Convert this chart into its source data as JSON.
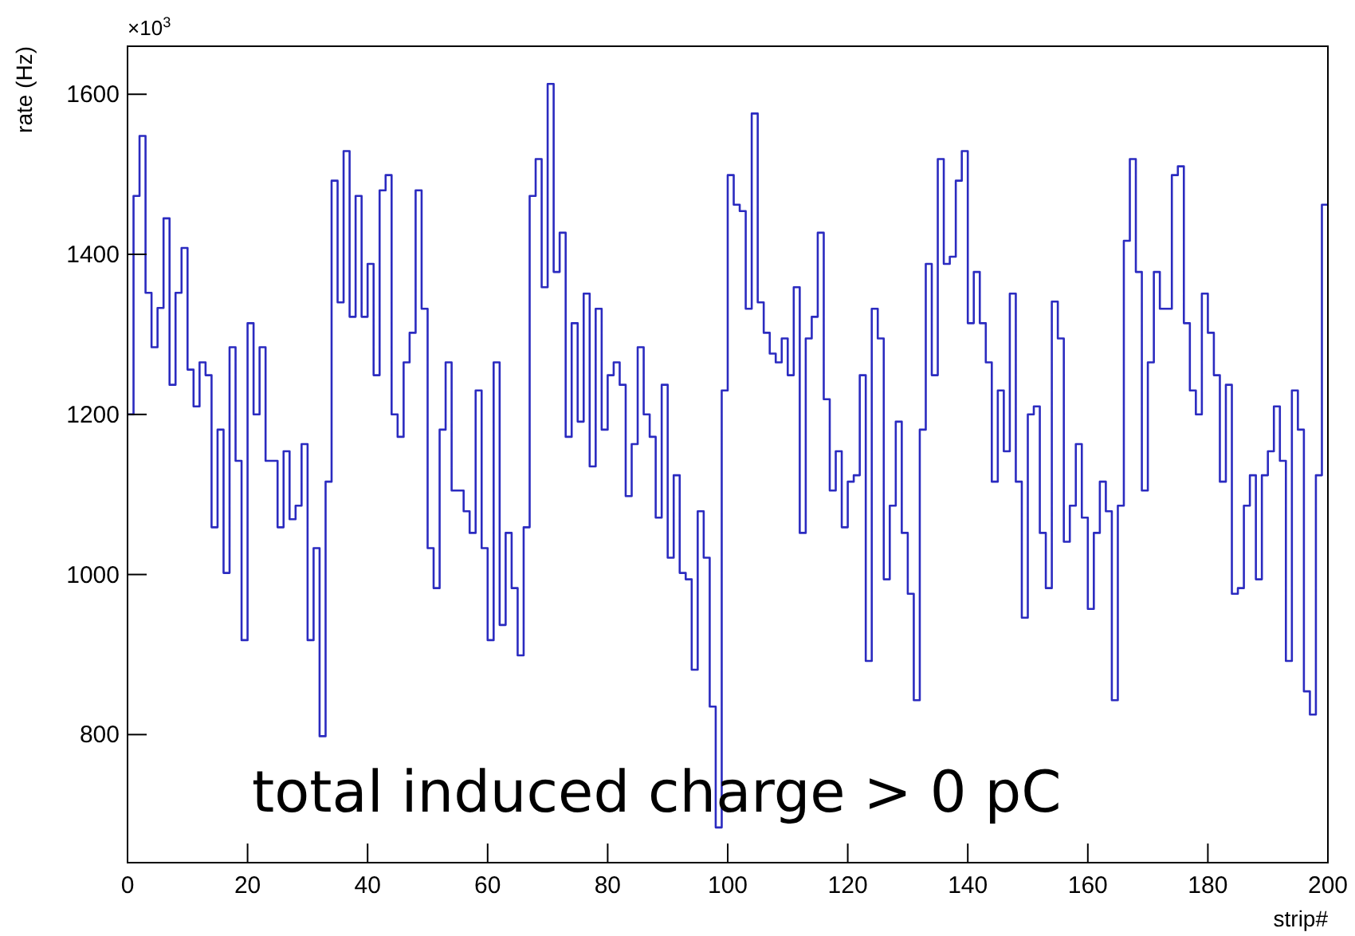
{
  "chart_data": {
    "type": "histogram",
    "xlabel": "strip#",
    "ylabel": "rate (Hz)",
    "color": "#2b2bc0",
    "annotations": [
      "×10$^{3}$",
      "total induced charge > 0 pC"
    ],
    "bins": [
      0,
      1,
      2,
      3,
      4,
      5,
      6,
      7,
      8,
      9,
      10,
      11,
      12,
      13,
      14,
      15,
      16,
      17,
      18,
      19,
      20,
      21,
      22,
      23,
      24,
      25,
      26,
      27,
      28,
      29,
      30,
      31,
      32,
      33,
      34,
      35,
      36,
      37,
      38,
      39,
      40,
      41,
      42,
      43,
      44,
      45,
      46,
      47,
      48,
      49,
      50,
      51,
      52,
      53,
      54,
      55,
      56,
      57,
      58,
      59,
      60,
      61,
      62,
      63,
      64,
      65,
      66,
      67,
      68,
      69,
      70,
      71,
      72,
      73,
      74,
      75,
      76,
      77,
      78,
      79,
      80,
      81,
      82,
      83,
      84,
      85,
      86,
      87,
      88,
      89,
      90,
      91,
      92,
      93,
      94,
      95,
      96,
      97,
      98,
      99,
      100,
      101,
      102,
      103,
      104,
      105,
      106,
      107,
      108,
      109,
      110,
      111,
      112,
      113,
      114,
      115,
      116,
      117,
      118,
      119,
      120,
      121,
      122,
      123,
      124,
      125,
      126,
      127,
      128,
      129,
      130,
      131,
      132,
      133,
      134,
      135,
      136,
      137,
      138,
      139,
      140,
      141,
      142,
      143,
      144,
      145,
      146,
      147,
      148,
      149,
      150,
      151,
      152,
      153,
      154,
      155,
      156,
      157,
      158,
      159,
      160,
      161,
      162,
      163,
      164,
      165,
      166,
      167,
      168,
      169,
      170,
      171,
      172,
      173,
      174,
      175,
      176,
      177,
      178,
      179,
      180,
      181,
      182,
      183,
      184,
      185,
      186,
      187,
      188,
      189,
      190,
      191,
      192,
      193,
      194,
      195,
      196,
      197,
      198,
      199,
      200
    ],
    "values": [
      1200,
      1473,
      1548,
      1352,
      1284,
      1333,
      1445,
      1237,
      1352,
      1408,
      1256,
      1210,
      1265,
      1249,
      1059,
      1181,
      1002,
      1284,
      1142,
      918,
      1314,
      1200,
      1284,
      1142,
      1142,
      1059,
      1154,
      1069,
      1086,
      1163,
      918,
      1033,
      798,
      1116,
      1492,
      1340,
      1529,
      1322,
      1473,
      1322,
      1388,
      1249,
      1480,
      1499,
      1200,
      1172,
      1265,
      1302,
      1480,
      1332,
      1033,
      983,
      1181,
      1265,
      1105,
      1105,
      1079,
      1052,
      1230,
      1033,
      918,
      1265,
      937,
      1052,
      983,
      899,
      1059,
      1473,
      1519,
      1359,
      1613,
      1378,
      1427,
      1172,
      1314,
      1191,
      1351,
      1135,
      1332,
      1181,
      1249,
      1265,
      1237,
      1098,
      1163,
      1284,
      1200,
      1172,
      1071,
      1237,
      1021,
      1124,
      1002,
      994,
      881,
      1079,
      1021,
      835,
      684,
      1230,
      1499,
      1462,
      1454,
      1332,
      1576,
      1340,
      1302,
      1276,
      1265,
      1295,
      1249,
      1359,
      1052,
      1295,
      1322,
      1427,
      1219,
      1105,
      1154,
      1059,
      1116,
      1124,
      1249,
      892,
      1332,
      1295,
      994,
      1086,
      1191,
      1052,
      976,
      843,
      1181,
      1388,
      1249,
      1519,
      1388,
      1397,
      1492,
      1529,
      1314,
      1378,
      1314,
      1265,
      1116,
      1230,
      1154,
      1351,
      1116,
      946,
      1200,
      1210,
      1052,
      983,
      1341,
      1295,
      1041,
      1086,
      1163,
      1071,
      957,
      1052,
      1116,
      1079,
      843,
      1086,
      1417,
      1519,
      1378,
      1105,
      1265,
      1378,
      1332,
      1332,
      1499,
      1510,
      1314,
      1230,
      1200,
      1351,
      1302,
      1249,
      1116,
      1237,
      976,
      983,
      1086,
      1124,
      994,
      1124,
      1154,
      1210,
      1142,
      892,
      1230,
      1181,
      854,
      825,
      1124,
      1462
    ],
    "xlim": [
      0,
      200
    ],
    "xticks": [
      0,
      20,
      40,
      60,
      80,
      100,
      120,
      140,
      160,
      180,
      200
    ],
    "ylim": [
      640,
      1660
    ],
    "yticks": [
      800,
      1000,
      1200,
      1400,
      1600
    ],
    "grid": false
  }
}
